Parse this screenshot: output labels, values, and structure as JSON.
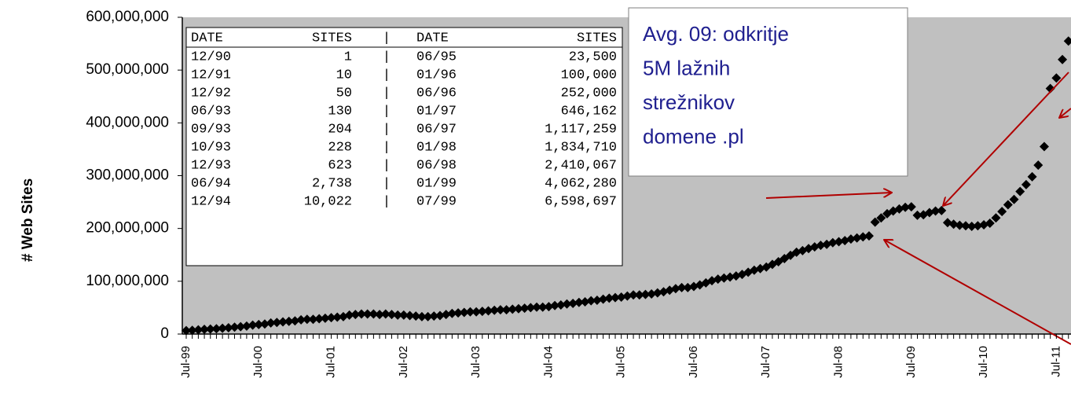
{
  "chart_data": {
    "type": "scatter",
    "y_axis_label": "# Web Sites",
    "categories": [
      "Jul-99",
      null,
      null,
      null,
      null,
      null,
      null,
      null,
      null,
      null,
      null,
      null,
      "Jul-00",
      null,
      null,
      null,
      null,
      null,
      null,
      null,
      null,
      null,
      null,
      null,
      "Jul-01",
      null,
      null,
      null,
      null,
      null,
      null,
      null,
      null,
      null,
      null,
      null,
      "Jul-02",
      null,
      null,
      null,
      null,
      null,
      null,
      null,
      null,
      null,
      null,
      null,
      "Jul-03",
      null,
      null,
      null,
      null,
      null,
      null,
      null,
      null,
      null,
      null,
      null,
      "Jul-04",
      null,
      null,
      null,
      null,
      null,
      null,
      null,
      null,
      null,
      null,
      null,
      "Jul-05",
      null,
      null,
      null,
      null,
      null,
      null,
      null,
      null,
      null,
      null,
      null,
      "Jul-06",
      null,
      null,
      null,
      null,
      null,
      null,
      null,
      null,
      null,
      null,
      null,
      "Jul-07",
      null,
      null,
      null,
      null,
      null,
      null,
      null,
      null,
      null,
      null,
      null,
      "Jul-08",
      null,
      null,
      null,
      null,
      null,
      null,
      null,
      null,
      null,
      null,
      null,
      "Jul-09",
      null,
      null,
      null,
      null,
      null,
      null,
      null,
      null,
      null,
      null,
      null,
      "Jul-10",
      null,
      null,
      null,
      null,
      null,
      null,
      null,
      null,
      null,
      null,
      null,
      "Jul-11",
      null,
      null
    ],
    "series": [
      {
        "name": "Web Sites",
        "color": "#000000",
        "values": [
          6598697,
          7000000,
          8000000,
          9000000,
          9500000,
          10000000,
          11000000,
          12000000,
          13000000,
          14000000,
          15000000,
          17000000,
          18000000,
          19000000,
          21000000,
          22000000,
          23000000,
          24000000,
          25000000,
          27000000,
          28000000,
          28000000,
          29000000,
          30000000,
          31000000,
          32000000,
          33000000,
          36000000,
          37000000,
          38000000,
          38000000,
          38000000,
          37000000,
          38000000,
          37000000,
          36000000,
          36000000,
          35000000,
          34000000,
          33000000,
          33000000,
          34000000,
          35000000,
          37000000,
          39000000,
          40000000,
          41000000,
          42000000,
          42000000,
          43000000,
          44000000,
          45000000,
          46000000,
          46000000,
          47000000,
          48000000,
          49000000,
          50000000,
          51000000,
          51000000,
          52000000,
          54000000,
          55000000,
          57000000,
          58000000,
          60000000,
          61000000,
          63000000,
          64000000,
          66000000,
          68000000,
          69000000,
          70000000,
          72000000,
          74000000,
          74000000,
          75000000,
          76000000,
          78000000,
          80000000,
          83000000,
          86000000,
          88000000,
          88000000,
          90000000,
          93000000,
          97000000,
          101000000,
          104000000,
          106000000,
          108000000,
          110000000,
          113000000,
          117000000,
          121000000,
          124000000,
          127000000,
          132000000,
          137000000,
          143000000,
          149000000,
          155000000,
          158000000,
          162000000,
          165000000,
          168000000,
          170000000,
          173000000,
          175000000,
          177000000,
          180000000,
          182000000,
          184000000,
          186000000,
          212000000,
          220000000,
          228000000,
          233000000,
          237000000,
          240000000,
          241000000,
          225000000,
          226000000,
          230000000,
          233000000,
          234000000,
          211000000,
          208000000,
          206000000,
          205000000,
          204000000,
          205000000,
          207000000,
          210000000,
          220000000,
          232000000,
          245000000,
          255000000,
          270000000,
          283000000,
          298000000,
          320000000,
          355000000,
          465000000,
          485000000,
          520000000,
          555000000
        ]
      }
    ],
    "ylim": [
      0,
      600000000
    ],
    "yticks": [
      0,
      {
        "value": 100000000,
        "label": "100,000,000"
      },
      {
        "value": 200000000,
        "label": "200,000,000"
      },
      {
        "value": 300000000,
        "label": "300,000,000"
      },
      {
        "value": 400000000,
        "label": "400,000,000"
      },
      {
        "value": 500000000,
        "label": "500,000,000"
      },
      {
        "value": 600000000,
        "label": "600,000,000"
      }
    ],
    "grid": false,
    "plot_background": "#c0c0c0"
  },
  "table": {
    "header": [
      "DATE",
      "SITES",
      "DATE",
      "SITES"
    ],
    "separator": "|",
    "rows": [
      [
        "12/90",
        "1",
        "06/95",
        "23,500"
      ],
      [
        "12/91",
        "10",
        "01/96",
        "100,000"
      ],
      [
        "12/92",
        "50",
        "06/96",
        "252,000"
      ],
      [
        "06/93",
        "130",
        "01/97",
        "646,162"
      ],
      [
        "09/93",
        "204",
        "06/97",
        "1,117,259"
      ],
      [
        "10/93",
        "228",
        "01/98",
        "1,834,710"
      ],
      [
        "12/93",
        "623",
        "06/98",
        "2,410,067"
      ],
      [
        "06/94",
        "2,738",
        "01/99",
        "4,062,280"
      ],
      [
        "12/94",
        "10,022",
        "07/99",
        "6,598,697"
      ]
    ]
  },
  "annotation": {
    "lines": [
      "Avg. 09: odkritje",
      "5M lažnih",
      "strežnikov",
      "domene .pl"
    ]
  }
}
